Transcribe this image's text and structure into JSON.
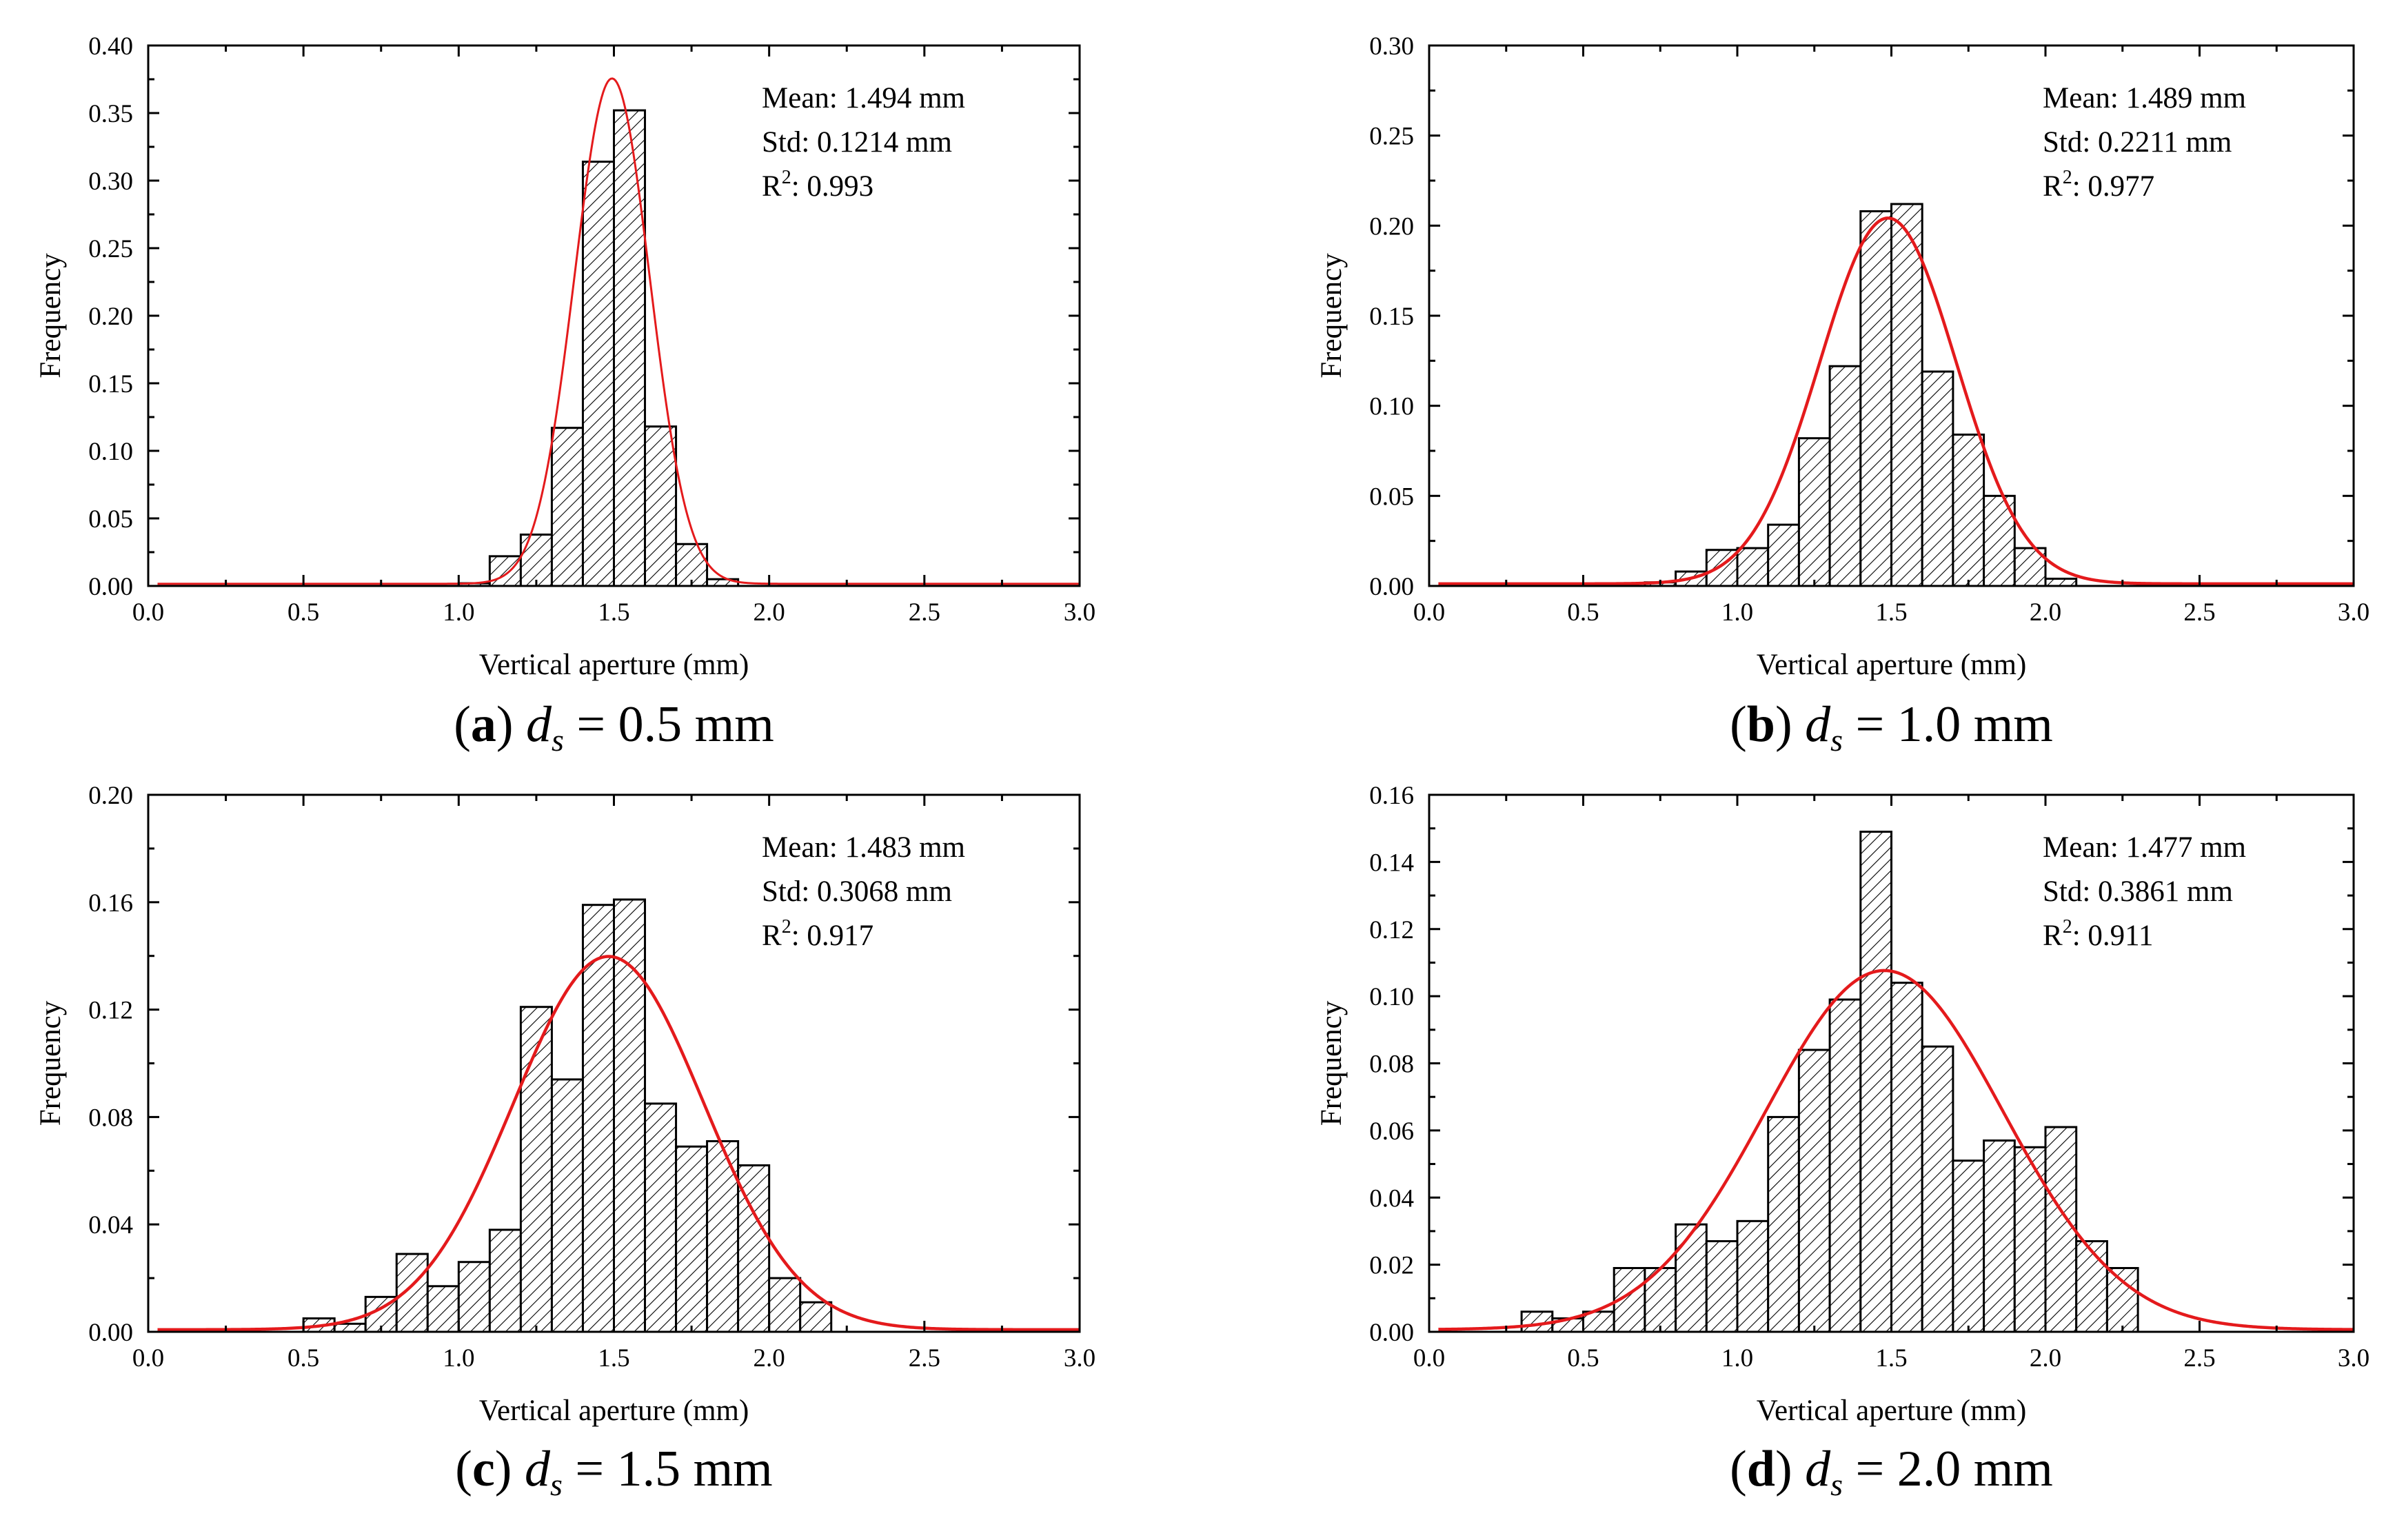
{
  "figure": {
    "colors": {
      "fit_curve": "#e41a1c",
      "bar_edge": "#000000",
      "bar_hatch": "#000000",
      "background": "#ffffff"
    }
  },
  "chart_data": [
    {
      "id": "a",
      "type": "bar",
      "caption": {
        "label": "a",
        "variable": "d",
        "subscript": "s",
        "rest": " = 0.5 mm"
      },
      "xlabel": "Vertical aperture (mm)",
      "ylabel": "Frequency",
      "xlim": [
        0,
        3
      ],
      "ylim": [
        0,
        0.4
      ],
      "xticks": [
        0,
        0.5,
        1,
        1.5,
        2,
        2.5,
        3
      ],
      "xtick_labels": [
        "0.0",
        "0.5",
        "1.0",
        "1.5",
        "2.0",
        "2.5",
        "3.0"
      ],
      "yticks": [
        0,
        0.05,
        0.1,
        0.15,
        0.2,
        0.25,
        0.3,
        0.35,
        0.4
      ],
      "ytick_labels": [
        "0.00",
        "0.05",
        "0.10",
        "0.15",
        "0.20",
        "0.25",
        "0.30",
        "0.35",
        "0.40"
      ],
      "bin_width": 0.1,
      "bins": [
        1.05,
        1.15,
        1.25,
        1.35,
        1.45,
        1.55,
        1.65,
        1.75,
        1.85
      ],
      "values": [
        0.002,
        0.022,
        0.038,
        0.117,
        0.314,
        0.352,
        0.118,
        0.031,
        0.005
      ],
      "fit": {
        "mean": 1.494,
        "std": 0.1214,
        "peak": 0.374
      },
      "stats": {
        "mean_label": "Mean: ",
        "mean": "1.494 mm",
        "std_label": "Std: ",
        "std": "0.1214 mm",
        "r2_label": "R",
        "r2_sup": "2",
        "r2": ": 0.993"
      }
    },
    {
      "id": "b",
      "type": "bar",
      "caption": {
        "label": "b",
        "variable": "d",
        "subscript": "s",
        "rest": " = 1.0 mm"
      },
      "xlabel": "Vertical aperture (mm)",
      "ylabel": "Frequency",
      "xlim": [
        0,
        3
      ],
      "ylim": [
        0,
        0.3
      ],
      "xticks": [
        0,
        0.5,
        1,
        1.5,
        2,
        2.5,
        3
      ],
      "xtick_labels": [
        "0.0",
        "0.5",
        "1.0",
        "1.5",
        "2.0",
        "2.5",
        "3.0"
      ],
      "yticks": [
        0,
        0.05,
        0.1,
        0.15,
        0.2,
        0.25,
        0.3
      ],
      "ytick_labels": [
        "0.00",
        "0.05",
        "0.10",
        "0.15",
        "0.20",
        "0.25",
        "0.30"
      ],
      "bin_width": 0.1,
      "bins": [
        0.75,
        0.85,
        0.95,
        1.05,
        1.15,
        1.25,
        1.35,
        1.45,
        1.55,
        1.65,
        1.75,
        1.85,
        1.95,
        2.05
      ],
      "values": [
        0.002,
        0.008,
        0.02,
        0.021,
        0.034,
        0.082,
        0.122,
        0.208,
        0.212,
        0.119,
        0.084,
        0.05,
        0.021,
        0.004
      ],
      "fit": {
        "mean": 1.489,
        "std": 0.2211,
        "peak": 0.203
      },
      "stats": {
        "mean_label": "Mean: ",
        "mean": "1.489 mm",
        "std_label": "Std: ",
        "std": "0.2211 mm",
        "r2_label": "R",
        "r2_sup": "2",
        "r2": ": 0.977"
      }
    },
    {
      "id": "c",
      "type": "bar",
      "caption": {
        "label": "c",
        "variable": "d",
        "subscript": "s",
        "rest": " = 1.5 mm"
      },
      "xlabel": "Vertical aperture (mm)",
      "ylabel": "Frequency",
      "xlim": [
        0,
        3
      ],
      "ylim": [
        0,
        0.2
      ],
      "xticks": [
        0,
        0.5,
        1,
        1.5,
        2,
        2.5,
        3
      ],
      "xtick_labels": [
        "0.0",
        "0.5",
        "1.0",
        "1.5",
        "2.0",
        "2.5",
        "3.0"
      ],
      "yticks": [
        0,
        0.04,
        0.08,
        0.12,
        0.16,
        0.2
      ],
      "ytick_labels": [
        "0.00",
        "0.04",
        "0.08",
        "0.12",
        "0.16",
        "0.20"
      ],
      "bin_width": 0.1,
      "bins": [
        0.55,
        0.65,
        0.75,
        0.85,
        0.95,
        1.05,
        1.15,
        1.25,
        1.35,
        1.45,
        1.55,
        1.65,
        1.75,
        1.85,
        1.95,
        2.05,
        2.15
      ],
      "values": [
        0.005,
        0.003,
        0.013,
        0.029,
        0.017,
        0.026,
        0.038,
        0.121,
        0.094,
        0.159,
        0.161,
        0.085,
        0.069,
        0.071,
        0.062,
        0.02,
        0.011
      ],
      "fit": {
        "mean": 1.483,
        "std": 0.3068,
        "peak": 0.139
      },
      "stats": {
        "mean_label": "Mean: ",
        "mean": "1.483 mm",
        "std_label": "Std: ",
        "std": "0.3068 mm",
        "r2_label": "R",
        "r2_sup": "2",
        "r2": ": 0.917"
      }
    },
    {
      "id": "d",
      "type": "bar",
      "caption": {
        "label": "d",
        "variable": "d",
        "subscript": "s",
        "rest": " = 2.0 mm"
      },
      "xlabel": "Vertical aperture (mm)",
      "ylabel": "Frequency",
      "xlim": [
        0,
        3
      ],
      "ylim": [
        0,
        0.16
      ],
      "xticks": [
        0,
        0.5,
        1,
        1.5,
        2,
        2.5,
        3
      ],
      "xtick_labels": [
        "0.0",
        "0.5",
        "1.0",
        "1.5",
        "2.0",
        "2.5",
        "3.0"
      ],
      "yticks": [
        0,
        0.02,
        0.04,
        0.06,
        0.08,
        0.1,
        0.12,
        0.14,
        0.16
      ],
      "ytick_labels": [
        "0.00",
        "0.02",
        "0.04",
        "0.06",
        "0.08",
        "0.10",
        "0.12",
        "0.14",
        "0.16"
      ],
      "bin_width": 0.1,
      "bins": [
        0.35,
        0.45,
        0.55,
        0.65,
        0.75,
        0.85,
        0.95,
        1.05,
        1.15,
        1.25,
        1.35,
        1.45,
        1.55,
        1.65,
        1.75,
        1.85,
        1.95,
        2.05,
        2.15,
        2.25
      ],
      "values": [
        0.006,
        0.004,
        0.006,
        0.019,
        0.019,
        0.032,
        0.027,
        0.033,
        0.064,
        0.084,
        0.099,
        0.149,
        0.104,
        0.085,
        0.051,
        0.057,
        0.055,
        0.061,
        0.027,
        0.019
      ],
      "fit": {
        "mean": 1.477,
        "std": 0.3861,
        "peak": 0.107
      },
      "stats": {
        "mean_label": "Mean: ",
        "mean": "1.477 mm",
        "std_label": "Std: ",
        "std": "0.3861 mm",
        "r2_label": "R",
        "r2_sup": "2",
        "r2": ": 0.911"
      }
    }
  ]
}
